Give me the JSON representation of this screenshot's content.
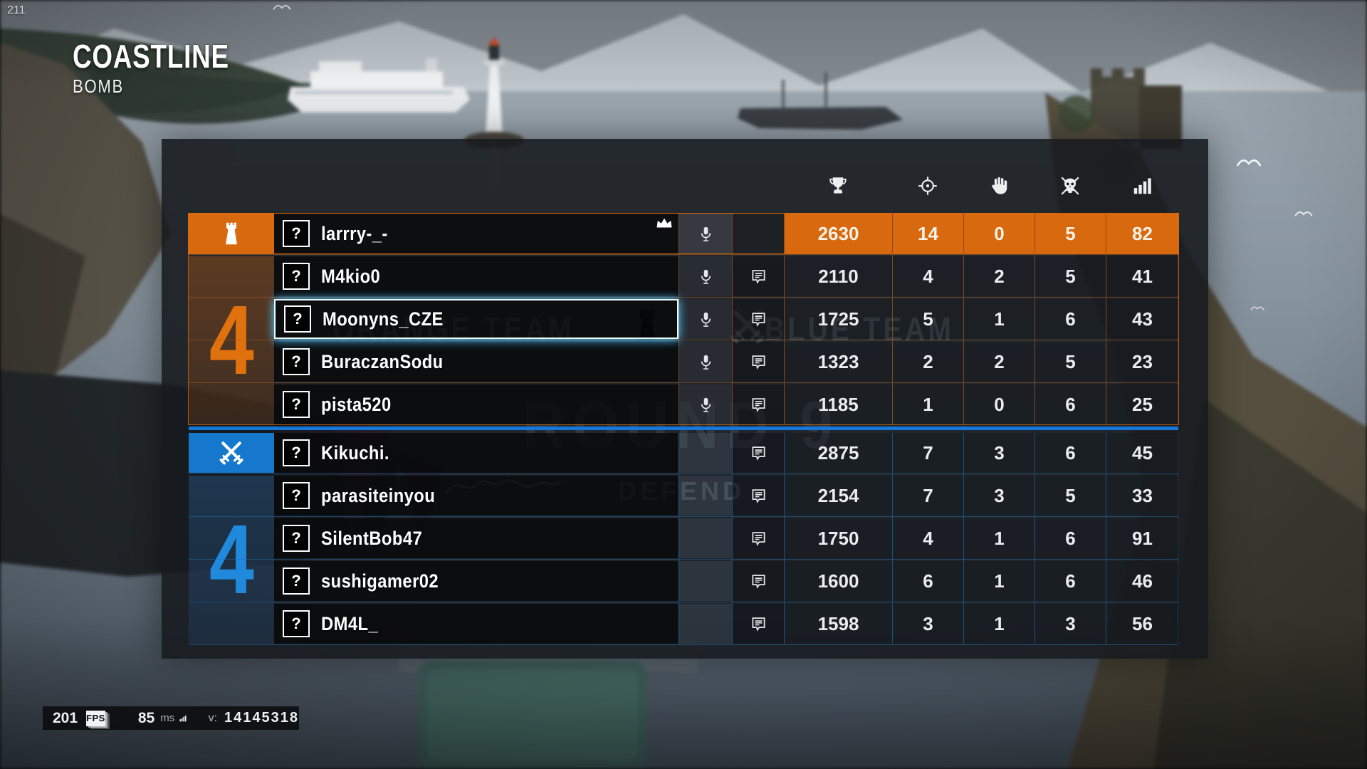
{
  "hud": {
    "corner_number": "211",
    "map_name": "COASTLINE",
    "game_mode": "BOMB"
  },
  "watermarks": {
    "orange_team_label": "ORANGE TEAM",
    "blue_team_label": "BLUE TEAM",
    "round_label": "ROUND 9",
    "phase_label": "DEFEND"
  },
  "perf_bar": {
    "fps_value": "201",
    "fps_icon_label": "FPS",
    "ping_value": "85",
    "ping_unit": "ms",
    "version_label": "v:",
    "version_value": "14145318"
  },
  "colors": {
    "orange_accent": "#d8690f",
    "blue_accent": "#1578cc",
    "blue_divider": "#1578d8",
    "selection_glow": "#50c8ff"
  },
  "scoreboard": {
    "columns": [
      {
        "name": "score",
        "icon": "trophy-icon"
      },
      {
        "name": "kills",
        "icon": "crosshair-icon"
      },
      {
        "name": "assists",
        "icon": "hand-icon"
      },
      {
        "name": "deaths",
        "icon": "skull-icon"
      },
      {
        "name": "ping",
        "icon": "signal-bars-icon"
      }
    ],
    "teams": [
      {
        "id": "orange",
        "badge_icon": "tower-icon",
        "rounds_won": "4",
        "rank_placeholder": "?",
        "rows": [
          {
            "name": "larrry-_-",
            "crown": true,
            "mic": true,
            "chat": false,
            "row_highlight": true,
            "selected": false,
            "stats": [
              "2630",
              "14",
              "0",
              "5",
              "82"
            ]
          },
          {
            "name": "M4kio0",
            "crown": false,
            "mic": true,
            "chat": true,
            "row_highlight": false,
            "selected": false,
            "stats": [
              "2110",
              "4",
              "2",
              "5",
              "41"
            ]
          },
          {
            "name": "Moonyns_CZE",
            "crown": false,
            "mic": true,
            "chat": true,
            "row_highlight": false,
            "selected": true,
            "stats": [
              "1725",
              "5",
              "1",
              "6",
              "43"
            ]
          },
          {
            "name": "BuraczanSodu",
            "crown": false,
            "mic": true,
            "chat": true,
            "row_highlight": false,
            "selected": false,
            "stats": [
              "1323",
              "2",
              "2",
              "5",
              "23"
            ]
          },
          {
            "name": "pista520",
            "crown": false,
            "mic": true,
            "chat": true,
            "row_highlight": false,
            "selected": false,
            "stats": [
              "1185",
              "1",
              "0",
              "6",
              "25"
            ]
          }
        ]
      },
      {
        "id": "blue",
        "badge_icon": "crossed-swords-icon",
        "rounds_won": "4",
        "rank_placeholder": "?",
        "rows": [
          {
            "name": "Kikuchi.",
            "crown": false,
            "mic": false,
            "chat": true,
            "row_highlight": false,
            "selected": false,
            "stats": [
              "2875",
              "7",
              "3",
              "6",
              "45"
            ]
          },
          {
            "name": "parasiteinyou",
            "crown": false,
            "mic": false,
            "chat": true,
            "row_highlight": false,
            "selected": false,
            "stats": [
              "2154",
              "7",
              "3",
              "5",
              "33"
            ]
          },
          {
            "name": "SilentBob47",
            "crown": false,
            "mic": false,
            "chat": true,
            "row_highlight": false,
            "selected": false,
            "stats": [
              "1750",
              "4",
              "1",
              "6",
              "91"
            ]
          },
          {
            "name": "sushigamer02",
            "crown": false,
            "mic": false,
            "chat": true,
            "row_highlight": false,
            "selected": false,
            "stats": [
              "1600",
              "6",
              "1",
              "6",
              "46"
            ]
          },
          {
            "name": "DM4L_",
            "crown": false,
            "mic": false,
            "chat": true,
            "row_highlight": false,
            "selected": false,
            "stats": [
              "1598",
              "3",
              "1",
              "3",
              "56"
            ]
          }
        ]
      }
    ]
  }
}
